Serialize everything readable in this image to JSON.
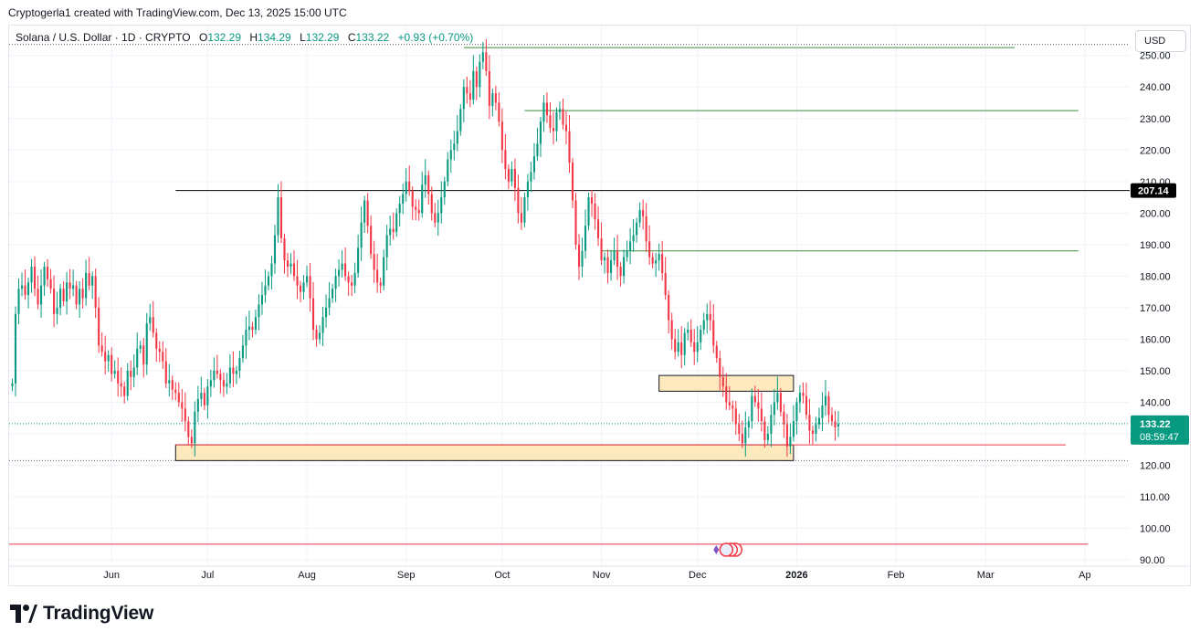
{
  "header": {
    "attribution": "Cryptogerla1 created with TradingView.com, Dec 13, 2025 15:00 UTC"
  },
  "legend": {
    "symbol": "Solana / U.S. Dollar · 1D · CRYPTO",
    "open_label": "O",
    "open": "132.29",
    "high_label": "H",
    "high": "134.29",
    "low_label": "L",
    "low": "132.29",
    "close_label": "C",
    "close": "133.22",
    "change": "+0.93 (+0.70%)"
  },
  "currency_button": "USD",
  "brand": {
    "name": "TradingView",
    "icon": "tradingview-logo-icon"
  },
  "colors": {
    "up": "#089981",
    "down": "#f23645",
    "grid": "#f0f3fa",
    "support_line": "#388e3c",
    "black_line": "#000000",
    "zone_fill": "#fde9be",
    "current_price": "#089981"
  },
  "chart_data": {
    "type": "candlestick",
    "ylim": [
      88,
      256
    ],
    "xlim": [
      "2025-04-30",
      "2026-04-15"
    ],
    "y_ticks": [
      90,
      100,
      110,
      120,
      130,
      140,
      150,
      160,
      170,
      180,
      190,
      200,
      210,
      220,
      230,
      240,
      250
    ],
    "x_ticks": [
      {
        "date": "2025-06-01",
        "label": "Jun",
        "bold": false
      },
      {
        "date": "2025-07-01",
        "label": "Jul",
        "bold": false
      },
      {
        "date": "2025-08-01",
        "label": "Aug",
        "bold": false
      },
      {
        "date": "2025-09-01",
        "label": "Sep",
        "bold": false
      },
      {
        "date": "2025-10-01",
        "label": "Oct",
        "bold": false
      },
      {
        "date": "2025-11-01",
        "label": "Nov",
        "bold": false
      },
      {
        "date": "2025-12-01",
        "label": "Dec",
        "bold": false
      },
      {
        "date": "2026-01-01",
        "label": "2026",
        "bold": true
      },
      {
        "date": "2026-02-01",
        "label": "Feb",
        "bold": false
      },
      {
        "date": "2026-03-01",
        "label": "Mar",
        "bold": false
      },
      {
        "date": "2026-04-01",
        "label": "Ap",
        "bold": false
      }
    ],
    "series": [
      {
        "name": "Solana / U.S. Dollar",
        "start_date": "2025-05-01",
        "closes": [
          146,
          168,
          176,
          177,
          174,
          178,
          183,
          176,
          171,
          177,
          183,
          179,
          176,
          168,
          170,
          176,
          172,
          178,
          176,
          177,
          171,
          176,
          173,
          181,
          177,
          180,
          170,
          158,
          156,
          153,
          155,
          149,
          150,
          146,
          145,
          142,
          150,
          148,
          151,
          157,
          158,
          152,
          165,
          167,
          162,
          157,
          156,
          153,
          146,
          147,
          144,
          143,
          140,
          138,
          134,
          129,
          127,
          137,
          141,
          143,
          139,
          145,
          147,
          150,
          149,
          147,
          145,
          146,
          151,
          149,
          150,
          154,
          158,
          163,
          164,
          163,
          167,
          171,
          174,
          177,
          180,
          184,
          193,
          205,
          192,
          185,
          183,
          184,
          180,
          177,
          175,
          178,
          180,
          173,
          163,
          160,
          162,
          167,
          170,
          173,
          176,
          180,
          182,
          184,
          180,
          178,
          177,
          181,
          189,
          197,
          204,
          196,
          187,
          182,
          178,
          177,
          186,
          193,
          195,
          194,
          200,
          203,
          206,
          210,
          207,
          202,
          201,
          200,
          209,
          212,
          206,
          200,
          197,
          200,
          205,
          210,
          217,
          220,
          222,
          226,
          233,
          240,
          238,
          236,
          245,
          240,
          248,
          251,
          245,
          234,
          238,
          235,
          229,
          220,
          214,
          210,
          214,
          208,
          200,
          197,
          205,
          210,
          213,
          218,
          222,
          229,
          235,
          231,
          227,
          226,
          232,
          233,
          228,
          226,
          216,
          204,
          190,
          183,
          188,
          196,
          205,
          203,
          198,
          192,
          185,
          186,
          181,
          185,
          188,
          183,
          180,
          186,
          188,
          191,
          193,
          197,
          201,
          199,
          191,
          186,
          184,
          185,
          187,
          181,
          174,
          166,
          160,
          156,
          159,
          155,
          162,
          163,
          159,
          156,
          159,
          163,
          166,
          168,
          166,
          158,
          154,
          148,
          145,
          140,
          139,
          138,
          133,
          130,
          127,
          132,
          134,
          142,
          140,
          138,
          134,
          128,
          130,
          136,
          140,
          143,
          137,
          133,
          126,
          129,
          134,
          140,
          143,
          142,
          136,
          131,
          130,
          133,
          135,
          139,
          142,
          136,
          134,
          132,
          133
        ]
      }
    ],
    "horizontal_lines": [
      {
        "price": 252.5,
        "from": "2025-09-19",
        "to": "2026-03-10",
        "color": "support_line"
      },
      {
        "price": 232.5,
        "from": "2025-10-08",
        "to": "2026-03-30",
        "color": "support_line"
      },
      {
        "price": 207.14,
        "from": "2025-06-21",
        "to": "2026-04-15",
        "color": "black_line",
        "label": "207.14"
      },
      {
        "price": 188.0,
        "from": "2025-11-01",
        "to": "2026-03-30",
        "color": "support_line"
      },
      {
        "price": 126.5,
        "from": "2025-06-21",
        "to": "2026-03-26",
        "color": "down"
      },
      {
        "price": 95.0,
        "from": "2025-04-30",
        "to": "2026-04-02",
        "color": "down"
      }
    ],
    "zones": [
      {
        "top": 126.5,
        "bottom": 121.5,
        "from": "2025-06-21",
        "to": "2025-12-31"
      },
      {
        "top": 148.5,
        "bottom": 143.5,
        "from": "2025-11-19",
        "to": "2025-12-31"
      }
    ],
    "current_price": {
      "value": 133.22,
      "label": "133.22",
      "countdown": "08:59:47"
    },
    "dotted_levels": [
      253.5,
      133.22,
      121.5
    ]
  }
}
